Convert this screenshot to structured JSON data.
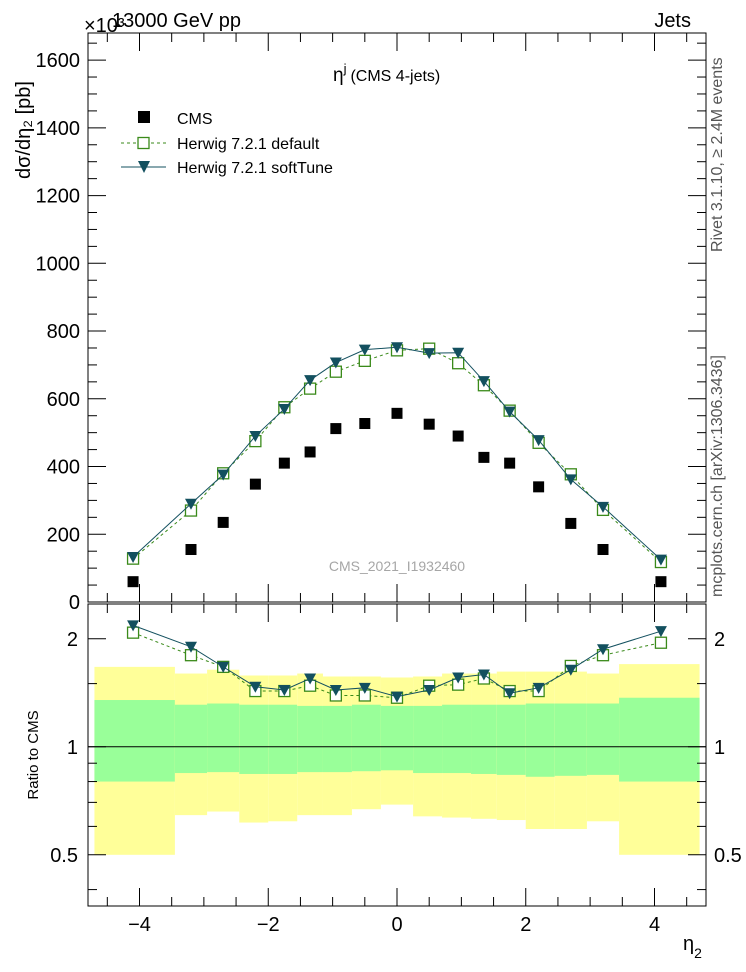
{
  "header": {
    "left": "13000 GeV pp",
    "right": "Jets",
    "scale_exponent": "×10³"
  },
  "side_labels": {
    "rivet": "Rivet 3.1.10, ≥ 2.4M events",
    "mcplots": "mcplots.cern.ch [arXiv:1306.3436]"
  },
  "colors": {
    "cms": "#000000",
    "herwig_default": "#3a8a1a",
    "herwig_soft": "#13505f",
    "band_outer": "#ffff99",
    "band_inner": "#99ff99"
  },
  "chart_data": [
    {
      "type": "scatter",
      "panel": "main",
      "title_main": "η",
      "title_sup": "j",
      "title_rest": "(CMS 4-jets)",
      "ylabel": "dσ/dη₂ [pb]",
      "watermark": "CMS_2021_I1932460",
      "xlim": [
        -4.8,
        4.8
      ],
      "ylim": [
        0,
        1680
      ],
      "y_ticks": [
        0,
        200,
        400,
        600,
        800,
        1000,
        1200,
        1400,
        1600
      ],
      "y_tick_labels": [
        "0",
        "200",
        "400",
        "600",
        "800",
        "1000",
        "1200",
        "1400",
        "1600"
      ],
      "legend_position": "top-left",
      "x": [
        -4.1,
        -3.2,
        -2.7,
        -2.2,
        -1.75,
        -1.35,
        -0.95,
        -0.5,
        0.0,
        0.5,
        0.95,
        1.35,
        1.75,
        2.2,
        2.7,
        3.2,
        4.1
      ],
      "series": [
        {
          "name": "CMS",
          "marker": "square-filled",
          "values": [
            60,
            155,
            235,
            348,
            410,
            443,
            512,
            527,
            557,
            525,
            490,
            427,
            410,
            340,
            232,
            155,
            60
          ]
        },
        {
          "name": "Herwig 7.2.1 default",
          "marker": "square-open",
          "line": "dashed",
          "values": [
            128,
            270,
            380,
            475,
            575,
            630,
            680,
            712,
            743,
            748,
            705,
            640,
            565,
            470,
            377,
            272,
            118
          ]
        },
        {
          "name": "Herwig 7.2.1 softTune",
          "marker": "triangle-down",
          "line": "solid",
          "values": [
            133,
            290,
            376,
            490,
            570,
            655,
            707,
            745,
            752,
            735,
            736,
            652,
            562,
            478,
            362,
            281,
            125
          ]
        }
      ]
    },
    {
      "type": "line",
      "panel": "ratio",
      "ylabel": "Ratio to CMS",
      "xlabel_main": "η",
      "xlabel_sub": "2",
      "xlim": [
        -4.8,
        4.8
      ],
      "ylim_log": [
        0.36,
        2.5
      ],
      "x_ticks": [
        -4,
        -2,
        0,
        2,
        4
      ],
      "x_tick_labels": [
        "−4",
        "−2",
        "0",
        "2",
        "4"
      ],
      "y_ticks": [
        0.5,
        1,
        2
      ],
      "y_tick_labels": [
        "0.5",
        "1",
        "2"
      ],
      "reference_line": 1,
      "bands": {
        "edges": [
          -4.7,
          -3.45,
          -2.95,
          -2.45,
          -2.0,
          -1.55,
          -1.15,
          -0.7,
          -0.25,
          0.25,
          0.7,
          1.15,
          1.55,
          2.0,
          2.45,
          2.95,
          3.45,
          4.7
        ],
        "outer_lo": [
          0.5,
          0.645,
          0.66,
          0.615,
          0.62,
          0.645,
          0.645,
          0.67,
          0.69,
          0.64,
          0.635,
          0.63,
          0.625,
          0.59,
          0.59,
          0.62,
          0.5
        ],
        "outer_hi": [
          1.67,
          1.6,
          1.64,
          1.58,
          1.58,
          1.6,
          1.57,
          1.57,
          1.56,
          1.57,
          1.6,
          1.6,
          1.62,
          1.62,
          1.62,
          1.6,
          1.7
        ],
        "inner_lo": [
          0.8,
          0.845,
          0.85,
          0.84,
          0.84,
          0.85,
          0.85,
          0.855,
          0.86,
          0.845,
          0.845,
          0.84,
          0.835,
          0.825,
          0.83,
          0.835,
          0.8
        ],
        "inner_hi": [
          1.35,
          1.31,
          1.32,
          1.31,
          1.31,
          1.3,
          1.3,
          1.31,
          1.3,
          1.3,
          1.31,
          1.31,
          1.31,
          1.32,
          1.32,
          1.32,
          1.37
        ]
      },
      "series": [
        {
          "name": "Herwig 7.2.1 default",
          "marker": "square-open",
          "line": "dashed",
          "values": [
            2.08,
            1.8,
            1.67,
            1.43,
            1.43,
            1.48,
            1.39,
            1.39,
            1.37,
            1.48,
            1.49,
            1.55,
            1.43,
            1.43,
            1.68,
            1.8,
            1.95
          ]
        },
        {
          "name": "Herwig 7.2.1 softTune",
          "marker": "triangle-down",
          "line": "solid",
          "values": [
            2.18,
            1.9,
            1.67,
            1.47,
            1.44,
            1.55,
            1.44,
            1.46,
            1.38,
            1.44,
            1.56,
            1.59,
            1.41,
            1.46,
            1.64,
            1.87,
            2.1
          ]
        }
      ]
    }
  ]
}
